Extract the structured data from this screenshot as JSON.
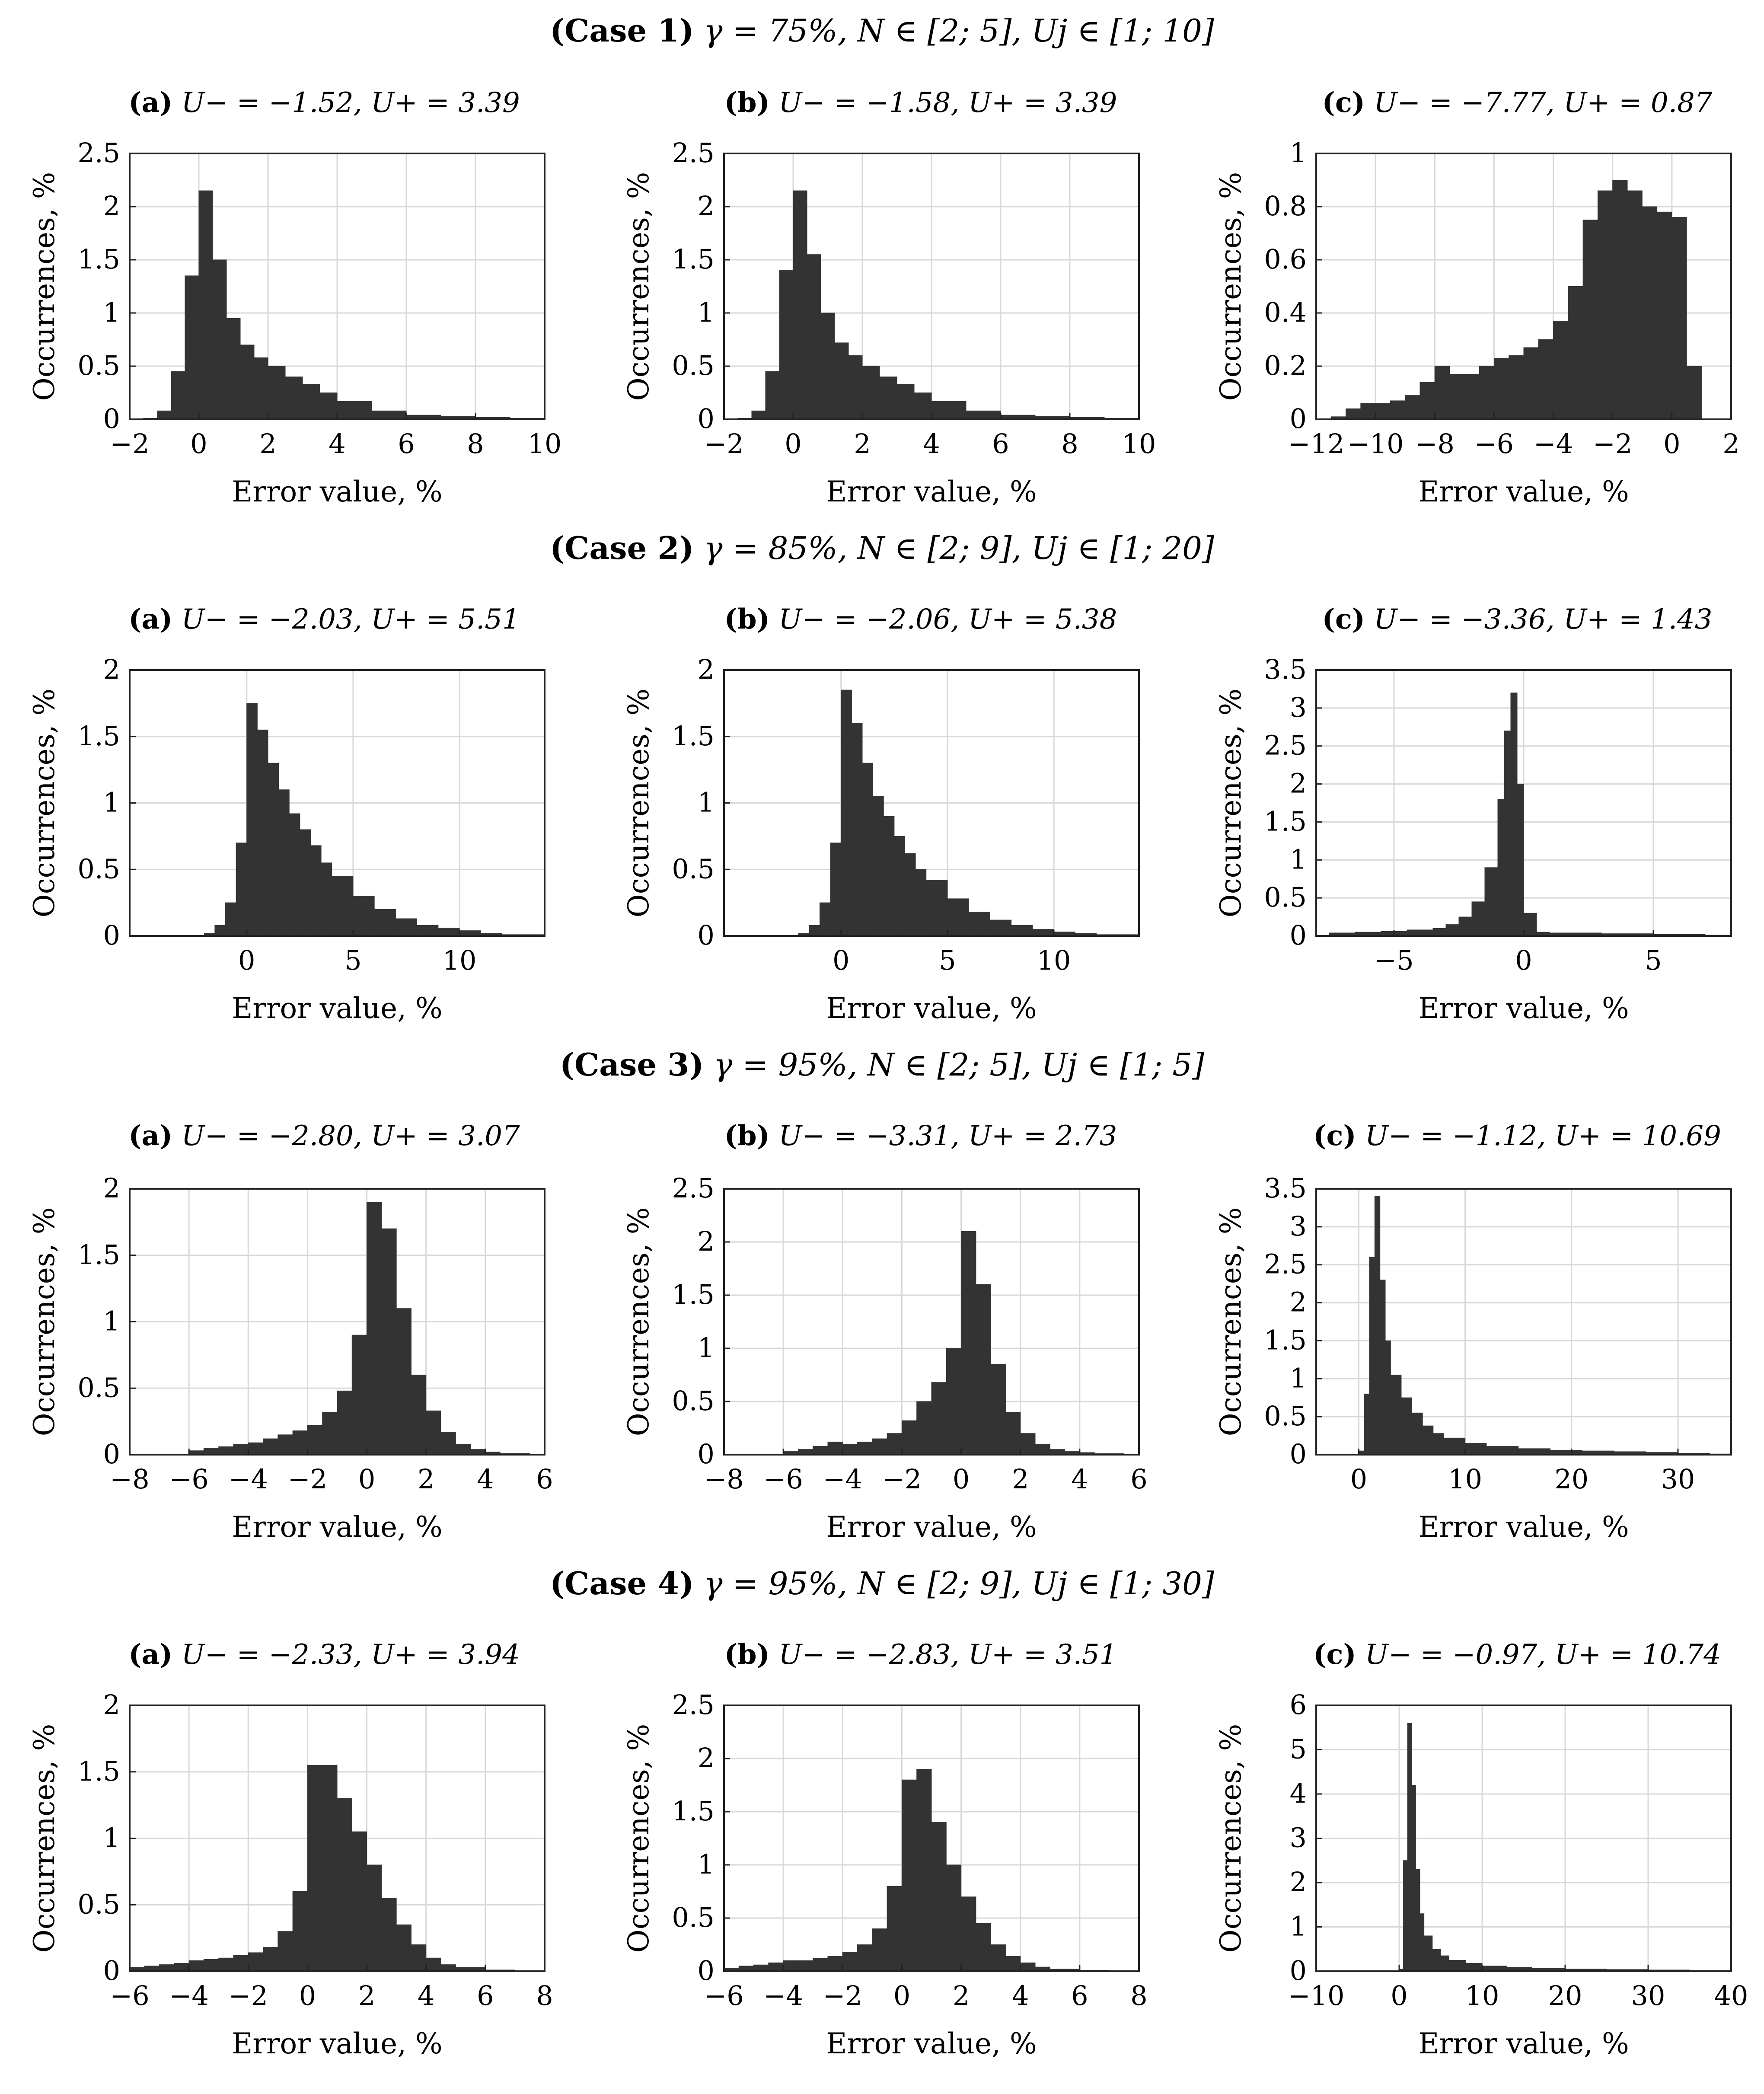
{
  "cases": [
    {
      "label": "(Case 1)",
      "params": "γ = 75%, N ∈ [2; 5], Uj ∈ [1; 10]"
    },
    {
      "label": "(Case 2)",
      "params": "γ = 85%, N ∈ [2; 9], Uj ∈ [1; 20]"
    },
    {
      "label": "(Case 3)",
      "params": "γ = 95%, N ∈ [2; 5], Uj ∈ [1; 5]"
    },
    {
      "label": "(Case 4)",
      "params": "γ = 95%, N ∈ [2; 9], Uj ∈ [1; 30]"
    }
  ],
  "chart_data": [
    {
      "type": "bar",
      "case": 1,
      "panel_label": "(a)",
      "u_text": "U− = −1.52, U+ = 3.39",
      "xlabel": "Error value, %",
      "ylabel": "Occurrences, %",
      "xlim": [
        -2,
        10
      ],
      "ylim": [
        0,
        2.5
      ],
      "xticks": [
        -2,
        0,
        2,
        4,
        6,
        8,
        10
      ],
      "yticks": [
        0,
        0.5,
        1,
        1.5,
        2,
        2.5
      ],
      "peak_x": 0,
      "peak_y": 2.15,
      "bins": [
        -1.6,
        -1.2,
        -0.8,
        -0.4,
        0,
        0.4,
        0.8,
        1.2,
        1.6,
        2,
        2.5,
        3,
        3.5,
        4,
        5,
        6,
        7,
        8,
        9,
        10
      ],
      "values": [
        0.01,
        0.08,
        0.45,
        1.35,
        2.15,
        1.5,
        0.95,
        0.7,
        0.58,
        0.5,
        0.4,
        0.33,
        0.25,
        0.17,
        0.08,
        0.04,
        0.03,
        0.02,
        0.01,
        0.01
      ],
      "grid": true
    },
    {
      "type": "bar",
      "case": 1,
      "panel_label": "(b)",
      "u_text": "U− = −1.58, U+ = 3.39",
      "xlabel": "Error value, %",
      "ylabel": "Occurrences, %",
      "xlim": [
        -2,
        10
      ],
      "ylim": [
        0,
        2.5
      ],
      "xticks": [
        -2,
        0,
        2,
        4,
        6,
        8,
        10
      ],
      "yticks": [
        0,
        0.5,
        1,
        1.5,
        2,
        2.5
      ],
      "peak_x": 0,
      "peak_y": 2.15,
      "bins": [
        -1.6,
        -1.2,
        -0.8,
        -0.4,
        0,
        0.4,
        0.8,
        1.2,
        1.6,
        2,
        2.5,
        3,
        3.5,
        4,
        5,
        6,
        7,
        8,
        9,
        10
      ],
      "values": [
        0.01,
        0.08,
        0.45,
        1.4,
        2.15,
        1.55,
        1.0,
        0.72,
        0.6,
        0.5,
        0.4,
        0.33,
        0.25,
        0.17,
        0.08,
        0.04,
        0.03,
        0.02,
        0.01,
        0.01
      ],
      "grid": true
    },
    {
      "type": "bar",
      "case": 1,
      "panel_label": "(c)",
      "u_text": "U− = −7.77, U+ = 0.87",
      "xlabel": "Error value, %",
      "ylabel": "Occurrences, %",
      "xlim": [
        -12,
        2
      ],
      "ylim": [
        0,
        1
      ],
      "xticks": [
        -12,
        -10,
        -8,
        -6,
        -4,
        -2,
        0,
        2
      ],
      "yticks": [
        0,
        0.2,
        0.4,
        0.6,
        0.8,
        1
      ],
      "bins": [
        -11.5,
        -11,
        -10.5,
        -10,
        -9.5,
        -9,
        -8.5,
        -8,
        -7.5,
        -7,
        -6.5,
        -6,
        -5.5,
        -5,
        -4.5,
        -4,
        -3.5,
        -3,
        -2.5,
        -2,
        -1.5,
        -1,
        -0.5,
        0,
        0.5,
        1
      ],
      "values": [
        0.01,
        0.04,
        0.06,
        0.06,
        0.07,
        0.09,
        0.14,
        0.2,
        0.17,
        0.17,
        0.2,
        0.23,
        0.24,
        0.27,
        0.3,
        0.37,
        0.5,
        0.75,
        0.86,
        0.9,
        0.86,
        0.8,
        0.78,
        0.76,
        0.2,
        0.0
      ],
      "grid": true
    },
    {
      "type": "bar",
      "case": 2,
      "panel_label": "(a)",
      "u_text": "U− = −2.03, U+ = 5.51",
      "xlabel": "Error value, %",
      "ylabel": "Occurrences, %",
      "xlim": [
        -5.5,
        14
      ],
      "ylim": [
        0,
        2
      ],
      "xticks": [
        0,
        5,
        10
      ],
      "yticks": [
        0,
        0.5,
        1,
        1.5,
        2
      ],
      "bins": [
        -2,
        -1.5,
        -1,
        -0.5,
        0,
        0.5,
        1,
        1.5,
        2,
        2.5,
        3,
        3.5,
        4,
        5,
        6,
        7,
        8,
        9,
        10,
        11,
        12,
        13
      ],
      "values": [
        0.02,
        0.08,
        0.25,
        0.7,
        1.75,
        1.55,
        1.3,
        1.1,
        0.92,
        0.8,
        0.68,
        0.55,
        0.45,
        0.3,
        0.2,
        0.13,
        0.08,
        0.06,
        0.04,
        0.02,
        0.01,
        0.01
      ],
      "grid": true
    },
    {
      "type": "bar",
      "case": 2,
      "panel_label": "(b)",
      "u_text": "U− = −2.06, U+ = 5.38",
      "xlabel": "Error value, %",
      "ylabel": "Occurrences, %",
      "xlim": [
        -5.5,
        14
      ],
      "ylim": [
        0,
        2
      ],
      "xticks": [
        0,
        5,
        10
      ],
      "yticks": [
        0,
        0.5,
        1,
        1.5,
        2
      ],
      "bins": [
        -2,
        -1.5,
        -1,
        -0.5,
        0,
        0.5,
        1,
        1.5,
        2,
        2.5,
        3,
        3.5,
        4,
        5,
        6,
        7,
        8,
        9,
        10,
        11,
        12,
        13
      ],
      "values": [
        0.02,
        0.08,
        0.25,
        0.7,
        1.85,
        1.6,
        1.3,
        1.05,
        0.9,
        0.75,
        0.62,
        0.5,
        0.42,
        0.28,
        0.18,
        0.12,
        0.08,
        0.05,
        0.03,
        0.02,
        0.01,
        0.01
      ],
      "grid": true
    },
    {
      "type": "bar",
      "case": 2,
      "panel_label": "(c)",
      "u_text": "U− = −3.36, U+ = 1.43",
      "xlabel": "Error value, %",
      "ylabel": "Occurrences, %",
      "xlim": [
        -8,
        8
      ],
      "ylim": [
        0,
        3.5
      ],
      "xticks": [
        -5,
        0,
        5
      ],
      "yticks": [
        0,
        0.5,
        1,
        1.5,
        2,
        2.5,
        3,
        3.5
      ],
      "bins": [
        -7.5,
        -6.5,
        -5.5,
        -4.5,
        -3.5,
        -3,
        -2.5,
        -2,
        -1.5,
        -1,
        -0.75,
        -0.5,
        -0.25,
        0,
        0.5,
        1,
        2,
        3,
        4,
        5,
        6,
        7
      ],
      "values": [
        0.04,
        0.05,
        0.06,
        0.08,
        0.1,
        0.15,
        0.25,
        0.45,
        0.9,
        1.8,
        2.7,
        3.2,
        2.0,
        0.3,
        0.05,
        0.04,
        0.04,
        0.03,
        0.03,
        0.02,
        0.02,
        0.01
      ],
      "grid": true
    },
    {
      "type": "bar",
      "case": 3,
      "panel_label": "(a)",
      "u_text": "U− = −2.80, U+ = 3.07",
      "xlabel": "Error value, %",
      "ylabel": "Occurrences, %",
      "xlim": [
        -8,
        6
      ],
      "ylim": [
        0,
        2
      ],
      "xticks": [
        -8,
        -6,
        -4,
        -2,
        0,
        2,
        4,
        6
      ],
      "yticks": [
        0,
        0.5,
        1,
        1.5,
        2
      ],
      "bins": [
        -6,
        -5.5,
        -5,
        -4.5,
        -4,
        -3.5,
        -3,
        -2.5,
        -2,
        -1.5,
        -1,
        -0.5,
        0,
        0.5,
        1,
        1.5,
        2,
        2.5,
        3,
        3.5,
        4,
        4.5,
        5,
        5.5
      ],
      "values": [
        0.03,
        0.05,
        0.06,
        0.08,
        0.09,
        0.12,
        0.15,
        0.18,
        0.22,
        0.32,
        0.48,
        0.9,
        1.9,
        1.7,
        1.1,
        0.6,
        0.33,
        0.17,
        0.08,
        0.04,
        0.02,
        0.01,
        0.01,
        0.0
      ],
      "grid": true
    },
    {
      "type": "bar",
      "case": 3,
      "panel_label": "(b)",
      "u_text": "U− = −3.31, U+ = 2.73",
      "xlabel": "Error value, %",
      "ylabel": "Occurrences, %",
      "xlim": [
        -8,
        6
      ],
      "ylim": [
        0,
        2.5
      ],
      "xticks": [
        -8,
        -6,
        -4,
        -2,
        0,
        2,
        4,
        6
      ],
      "yticks": [
        0,
        0.5,
        1,
        1.5,
        2,
        2.5
      ],
      "bins": [
        -6,
        -5.5,
        -5,
        -4.5,
        -4,
        -3.5,
        -3,
        -2.5,
        -2,
        -1.5,
        -1,
        -0.5,
        0,
        0.5,
        1,
        1.5,
        2,
        2.5,
        3,
        3.5,
        4,
        4.5,
        5,
        5.5
      ],
      "values": [
        0.03,
        0.05,
        0.08,
        0.12,
        0.1,
        0.12,
        0.15,
        0.2,
        0.32,
        0.5,
        0.68,
        1.0,
        2.1,
        1.6,
        0.85,
        0.4,
        0.2,
        0.1,
        0.05,
        0.03,
        0.02,
        0.01,
        0.01,
        0.0
      ],
      "grid": true
    },
    {
      "type": "bar",
      "case": 3,
      "panel_label": "(c)",
      "u_text": "U− = −1.12, U+ = 10.69",
      "xlabel": "Error value, %",
      "ylabel": "Occurrences, %",
      "xlim": [
        -4,
        35
      ],
      "ylim": [
        0,
        3.5
      ],
      "xticks": [
        0,
        10,
        20,
        30
      ],
      "yticks": [
        0,
        0.5,
        1,
        1.5,
        2,
        2.5,
        3,
        3.5
      ],
      "bins": [
        0,
        0.5,
        1,
        1.5,
        2,
        2.5,
        3,
        4,
        5,
        6,
        7,
        8,
        10,
        12,
        15,
        18,
        21,
        24,
        27,
        30,
        33
      ],
      "values": [
        0.05,
        0.8,
        2.6,
        3.4,
        2.3,
        1.5,
        1.05,
        0.75,
        0.55,
        0.38,
        0.28,
        0.22,
        0.15,
        0.11,
        0.08,
        0.06,
        0.05,
        0.04,
        0.03,
        0.02,
        0.01
      ],
      "grid": true
    },
    {
      "type": "bar",
      "case": 4,
      "panel_label": "(a)",
      "u_text": "U− = −2.33, U+ = 3.94",
      "xlabel": "Error value, %",
      "ylabel": "Occurrences, %",
      "xlim": [
        -6,
        8
      ],
      "ylim": [
        0,
        2
      ],
      "xticks": [
        -6,
        -4,
        -2,
        0,
        2,
        4,
        6,
        8
      ],
      "yticks": [
        0,
        0.5,
        1,
        1.5,
        2
      ],
      "bins": [
        -6,
        -5.5,
        -5,
        -4.5,
        -4,
        -3.5,
        -3,
        -2.5,
        -2,
        -1.5,
        -1,
        -0.5,
        0,
        0.5,
        1,
        1.5,
        2,
        2.5,
        3,
        3.5,
        4,
        4.5,
        5,
        6,
        7
      ],
      "values": [
        0.03,
        0.04,
        0.05,
        0.06,
        0.08,
        0.09,
        0.1,
        0.12,
        0.14,
        0.18,
        0.3,
        0.6,
        1.55,
        1.55,
        1.3,
        1.05,
        0.8,
        0.55,
        0.35,
        0.2,
        0.1,
        0.05,
        0.03,
        0.01,
        0.0
      ],
      "grid": true
    },
    {
      "type": "bar",
      "case": 4,
      "panel_label": "(b)",
      "u_text": "U− = −2.83, U+ = 3.51",
      "xlabel": "Error value, %",
      "ylabel": "Occurrences, %",
      "xlim": [
        -6,
        8
      ],
      "ylim": [
        0,
        2.5
      ],
      "xticks": [
        -6,
        -4,
        -2,
        0,
        2,
        4,
        6,
        8
      ],
      "yticks": [
        0,
        0.5,
        1,
        1.5,
        2,
        2.5
      ],
      "bins": [
        -6,
        -5.5,
        -5,
        -4.5,
        -4,
        -3.5,
        -3,
        -2.5,
        -2,
        -1.5,
        -1,
        -0.5,
        0,
        0.5,
        1,
        1.5,
        2,
        2.5,
        3,
        3.5,
        4,
        4.5,
        5,
        6,
        7
      ],
      "values": [
        0.03,
        0.05,
        0.06,
        0.08,
        0.1,
        0.1,
        0.12,
        0.14,
        0.18,
        0.25,
        0.4,
        0.8,
        1.8,
        1.9,
        1.4,
        1.0,
        0.7,
        0.45,
        0.25,
        0.14,
        0.08,
        0.04,
        0.02,
        0.01,
        0.0
      ],
      "grid": true
    },
    {
      "type": "bar",
      "case": 4,
      "panel_label": "(c)",
      "u_text": "U− = −0.97, U+ = 10.74",
      "xlabel": "Error value, %",
      "ylabel": "Occurrences, %",
      "xlim": [
        -10,
        40
      ],
      "ylim": [
        0,
        6
      ],
      "xticks": [
        -10,
        0,
        10,
        20,
        30,
        40
      ],
      "yticks": [
        0,
        1,
        2,
        3,
        4,
        5,
        6
      ],
      "bins": [
        0,
        0.5,
        1,
        1.5,
        2,
        2.5,
        3,
        4,
        5,
        6,
        8,
        10,
        13,
        16,
        20,
        25,
        30,
        35
      ],
      "values": [
        0.05,
        2.5,
        5.6,
        4.2,
        2.3,
        1.3,
        0.8,
        0.5,
        0.35,
        0.25,
        0.18,
        0.12,
        0.09,
        0.07,
        0.05,
        0.04,
        0.03,
        0.02
      ],
      "grid": true
    }
  ]
}
